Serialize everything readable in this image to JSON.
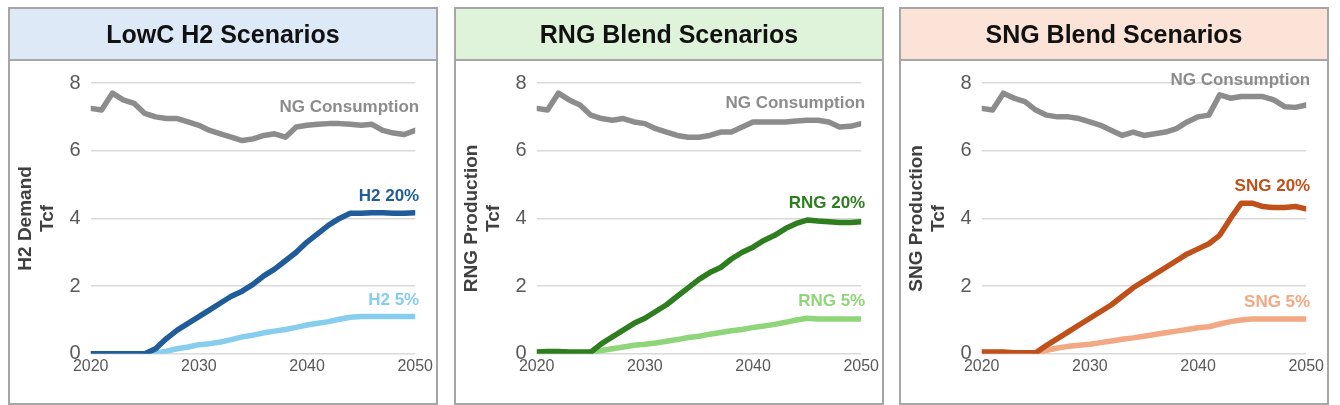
{
  "chart_data": [
    {
      "type": "line",
      "title": "LowC H2 Scenarios",
      "ylabel": "H2 Demand\nTcf",
      "x": [
        2020,
        2021,
        2022,
        2023,
        2024,
        2025,
        2026,
        2027,
        2028,
        2029,
        2030,
        2031,
        2032,
        2033,
        2034,
        2035,
        2036,
        2037,
        2038,
        2039,
        2040,
        2041,
        2042,
        2043,
        2044,
        2045,
        2046,
        2047,
        2048,
        2049,
        2050
      ],
      "xlim": [
        2020,
        2050
      ],
      "xticks": [
        2020,
        2030,
        2040,
        2050
      ],
      "ylim": [
        0,
        8
      ],
      "yticks": [
        0,
        2,
        4,
        6,
        8
      ],
      "grid": "y",
      "legend": false,
      "marker": "none",
      "series": [
        {
          "name": "NG Consumption",
          "color": "#8c8c8c",
          "values": [
            7.25,
            7.2,
            7.7,
            7.5,
            7.4,
            7.1,
            7.0,
            6.95,
            6.95,
            6.85,
            6.75,
            6.6,
            6.5,
            6.4,
            6.3,
            6.35,
            6.45,
            6.5,
            6.4,
            6.7,
            6.75,
            6.78,
            6.8,
            6.8,
            6.78,
            6.75,
            6.78,
            6.6,
            6.52,
            6.48,
            6.6
          ]
        },
        {
          "name": "H2 5%",
          "color": "#86cdee",
          "values": [
            null,
            null,
            null,
            null,
            null,
            0,
            0.02,
            0.08,
            0.15,
            0.2,
            0.27,
            0.3,
            0.35,
            0.42,
            0.5,
            0.55,
            0.62,
            0.67,
            0.72,
            0.78,
            0.85,
            0.9,
            0.95,
            1.02,
            1.08,
            1.1,
            1.1,
            1.1,
            1.1,
            1.1,
            1.1
          ]
        },
        {
          "name": "H2 20%",
          "color": "#1f5c99",
          "values": [
            0,
            0,
            0,
            0,
            0,
            0,
            0.15,
            0.45,
            0.7,
            0.9,
            1.1,
            1.3,
            1.5,
            1.7,
            1.85,
            2.05,
            2.3,
            2.5,
            2.75,
            3.0,
            3.3,
            3.55,
            3.8,
            4.0,
            4.15,
            4.15,
            4.17,
            4.17,
            4.15,
            4.15,
            4.17
          ]
        }
      ]
    },
    {
      "type": "line",
      "title": "RNG Blend Scenarios",
      "ylabel": "RNG Production\nTcf",
      "x": [
        2020,
        2021,
        2022,
        2023,
        2024,
        2025,
        2026,
        2027,
        2028,
        2029,
        2030,
        2031,
        2032,
        2033,
        2034,
        2035,
        2036,
        2037,
        2038,
        2039,
        2040,
        2041,
        2042,
        2043,
        2044,
        2045,
        2046,
        2047,
        2048,
        2049,
        2050
      ],
      "xlim": [
        2020,
        2050
      ],
      "xticks": [
        2020,
        2030,
        2040,
        2050
      ],
      "ylim": [
        0,
        8
      ],
      "yticks": [
        0,
        2,
        4,
        6,
        8
      ],
      "grid": "y",
      "legend": false,
      "marker": "none",
      "series": [
        {
          "name": "NG Consumption",
          "color": "#8c8c8c",
          "values": [
            7.25,
            7.2,
            7.7,
            7.5,
            7.35,
            7.05,
            6.95,
            6.9,
            6.95,
            6.85,
            6.8,
            6.65,
            6.55,
            6.45,
            6.4,
            6.4,
            6.45,
            6.55,
            6.55,
            6.7,
            6.85,
            6.85,
            6.85,
            6.85,
            6.88,
            6.9,
            6.9,
            6.85,
            6.7,
            6.72,
            6.8
          ]
        },
        {
          "name": "RNG 5%",
          "color": "#8fd67a",
          "values": [
            null,
            null,
            null,
            null,
            null,
            0.05,
            0.1,
            0.15,
            0.2,
            0.25,
            0.28,
            0.32,
            0.37,
            0.42,
            0.48,
            0.52,
            0.58,
            0.63,
            0.68,
            0.72,
            0.78,
            0.82,
            0.87,
            0.93,
            1.0,
            1.05,
            1.03,
            1.03,
            1.03,
            1.03,
            1.03
          ]
        },
        {
          "name": "RNG 20%",
          "color": "#2e7d1f",
          "values": [
            0.05,
            0.07,
            0.07,
            0.05,
            0.05,
            0.05,
            0.3,
            0.5,
            0.7,
            0.9,
            1.05,
            1.25,
            1.45,
            1.7,
            1.95,
            2.2,
            2.4,
            2.55,
            2.8,
            3.0,
            3.15,
            3.35,
            3.5,
            3.7,
            3.85,
            3.95,
            3.92,
            3.9,
            3.88,
            3.88,
            3.9
          ]
        }
      ]
    },
    {
      "type": "line",
      "title": "SNG Blend Scenarios",
      "ylabel": "SNG Production\nTcf",
      "x": [
        2020,
        2021,
        2022,
        2023,
        2024,
        2025,
        2026,
        2027,
        2028,
        2029,
        2030,
        2031,
        2032,
        2033,
        2034,
        2035,
        2036,
        2037,
        2038,
        2039,
        2040,
        2041,
        2042,
        2043,
        2044,
        2045,
        2046,
        2047,
        2048,
        2049,
        2050
      ],
      "xlim": [
        2020,
        2050
      ],
      "xticks": [
        2020,
        2030,
        2040,
        2050
      ],
      "ylim": [
        0,
        8
      ],
      "yticks": [
        0,
        2,
        4,
        6,
        8
      ],
      "grid": "y",
      "legend": false,
      "marker": "none",
      "series": [
        {
          "name": "NG Consumption",
          "color": "#8c8c8c",
          "values": [
            7.25,
            7.2,
            7.7,
            7.55,
            7.45,
            7.2,
            7.05,
            7.0,
            7.0,
            6.95,
            6.85,
            6.75,
            6.6,
            6.45,
            6.55,
            6.45,
            6.5,
            6.55,
            6.65,
            6.85,
            7.0,
            7.05,
            7.65,
            7.55,
            7.6,
            7.6,
            7.6,
            7.5,
            7.3,
            7.28,
            7.35
          ]
        },
        {
          "name": "SNG 5%",
          "color": "#f2a883",
          "values": [
            null,
            null,
            null,
            null,
            null,
            0.03,
            0.1,
            0.17,
            0.22,
            0.25,
            0.28,
            0.33,
            0.38,
            0.43,
            0.47,
            0.52,
            0.57,
            0.62,
            0.67,
            0.72,
            0.77,
            0.8,
            0.88,
            0.95,
            1.0,
            1.03,
            1.03,
            1.03,
            1.03,
            1.03,
            1.03
          ]
        },
        {
          "name": "SNG 20%",
          "color": "#c0501a",
          "values": [
            0.05,
            0.05,
            0.05,
            0.03,
            0.03,
            0.03,
            0.25,
            0.45,
            0.65,
            0.85,
            1.05,
            1.25,
            1.45,
            1.7,
            1.95,
            2.15,
            2.35,
            2.55,
            2.75,
            2.95,
            3.1,
            3.25,
            3.5,
            4.0,
            4.45,
            4.45,
            4.35,
            4.32,
            4.32,
            4.35,
            4.28
          ]
        }
      ]
    }
  ]
}
